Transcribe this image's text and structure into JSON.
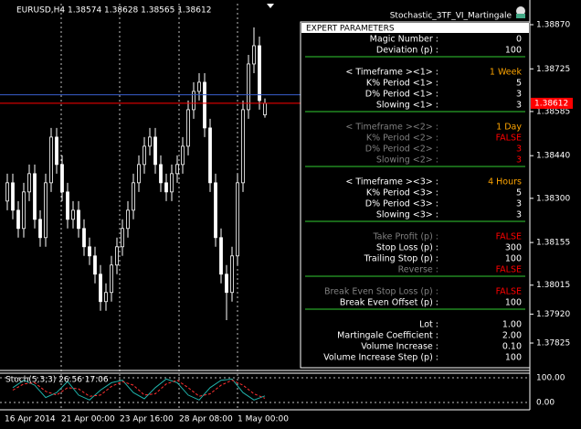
{
  "chart_data": {
    "type": "candlestick",
    "header": "EURUSD,H4 1.38574 1.38628 1.38565 1.38612",
    "expert": "Stochastic_3TF_VI_Martingale",
    "up_color": "#000000",
    "down_color": "#ffffff",
    "wick_color": "#ffffff",
    "ylim": [
      1.37735,
      1.38921
    ],
    "yticks": [
      {
        "value": 1.3887,
        "label": "1.38870"
      },
      1.38725,
      1.38585,
      {
        "value": 1.3844,
        "label": "1.38440"
      },
      {
        "value": 1.383,
        "label": "1.38300"
      },
      1.38155,
      1.38015,
      {
        "value": 1.3792,
        "label": "1.37920"
      },
      1.37825
    ],
    "bid": 1.38612,
    "bid_color": "#ff0000",
    "ask": 1.3864,
    "ask_color": "#3a5fcd",
    "x_labels": [
      "16 Apr 2014",
      "21 Apr 00:00",
      "23 Apr 16:00",
      "28 Apr 08:00",
      "1 May 00:00"
    ],
    "candles": [
      [
        1.38291,
        1.38381,
        1.38261,
        1.38351
      ],
      [
        1.38351,
        1.38381,
        1.38231,
        1.38261
      ],
      [
        1.38261,
        1.38291,
        1.38171,
        1.38201
      ],
      [
        1.38201,
        1.38351,
        1.38171,
        1.38321
      ],
      [
        1.38321,
        1.38411,
        1.38291,
        1.38381
      ],
      [
        1.38381,
        1.38411,
        1.38201,
        1.38231
      ],
      [
        1.38231,
        1.38261,
        1.38141,
        1.38171
      ],
      [
        1.38171,
        1.38381,
        1.38141,
        1.38351
      ],
      [
        1.38351,
        1.38531,
        1.38321,
        1.38501
      ],
      [
        1.38501,
        1.38531,
        1.38381,
        1.38411
      ],
      [
        1.38411,
        1.38441,
        1.38291,
        1.38321
      ],
      [
        1.38321,
        1.38351,
        1.38201,
        1.38231
      ],
      [
        1.38231,
        1.38291,
        1.38201,
        1.38261
      ],
      [
        1.38261,
        1.38291,
        1.38171,
        1.38201
      ],
      [
        1.38201,
        1.38231,
        1.38111,
        1.38141
      ],
      [
        1.38141,
        1.38171,
        1.38081,
        1.38111
      ],
      [
        1.38111,
        1.38141,
        1.38021,
        1.38051
      ],
      [
        1.38051,
        1.38081,
        1.37931,
        1.37961
      ],
      [
        1.37961,
        1.38021,
        1.37931,
        1.37991
      ],
      [
        1.37991,
        1.38111,
        1.37961,
        1.38081
      ],
      [
        1.38081,
        1.38171,
        1.38051,
        1.38141
      ],
      [
        1.38141,
        1.38231,
        1.38111,
        1.38201
      ],
      [
        1.38201,
        1.38291,
        1.38171,
        1.38261
      ],
      [
        1.38261,
        1.38381,
        1.38231,
        1.38351
      ],
      [
        1.38351,
        1.38441,
        1.38321,
        1.38411
      ],
      [
        1.38411,
        1.38501,
        1.38381,
        1.38471
      ],
      [
        1.38471,
        1.38531,
        1.38441,
        1.38501
      ],
      [
        1.38501,
        1.38531,
        1.38381,
        1.38411
      ],
      [
        1.38411,
        1.38441,
        1.38321,
        1.38351
      ],
      [
        1.38351,
        1.38381,
        1.38291,
        1.38321
      ],
      [
        1.38321,
        1.38411,
        1.38291,
        1.38381
      ],
      [
        1.38381,
        1.38441,
        1.38351,
        1.38411
      ],
      [
        1.38411,
        1.38501,
        1.38381,
        1.38471
      ],
      [
        1.38471,
        1.38621,
        1.38441,
        1.38591
      ],
      [
        1.38591,
        1.38681,
        1.38561,
        1.38651
      ],
      [
        1.38651,
        1.38711,
        1.38621,
        1.38681
      ],
      [
        1.38681,
        1.38711,
        1.38501,
        1.38531
      ],
      [
        1.38531,
        1.38561,
        1.38321,
        1.38351
      ],
      [
        1.38351,
        1.38381,
        1.38141,
        1.38171
      ],
      [
        1.38171,
        1.38201,
        1.38021,
        1.38051
      ],
      [
        1.38051,
        1.38081,
        1.379,
        1.37991
      ],
      [
        1.37991,
        1.38141,
        1.37961,
        1.38111
      ],
      [
        1.38111,
        1.38381,
        1.38081,
        1.38351
      ],
      [
        1.38351,
        1.38621,
        1.38321,
        1.38591
      ],
      [
        1.38591,
        1.38771,
        1.38561,
        1.38741
      ],
      [
        1.38741,
        1.38861,
        1.38711,
        1.38801
      ],
      [
        1.38801,
        1.38831,
        1.38591,
        1.38621
      ],
      [
        1.38574,
        1.38628,
        1.38565,
        1.38612
      ]
    ],
    "stoch": {
      "label": "Stoch(5,3,3) 26.56 17.06",
      "ylim": [
        0,
        100
      ],
      "yticks": [
        {
          "value": 100,
          "label": "100.00"
        },
        {
          "value": 0,
          "label": "0.00"
        }
      ],
      "series": [
        {
          "color": "#20b2aa",
          "values": [
            60,
            90,
            70,
            20,
            40,
            85,
            30,
            10,
            50,
            80,
            90,
            40,
            15,
            60,
            95,
            80,
            30,
            10,
            60,
            90,
            95,
            40,
            10,
            26.56
          ]
        },
        {
          "color": "#ff3030",
          "values": [
            50,
            75,
            80,
            45,
            30,
            60,
            55,
            25,
            30,
            65,
            85,
            70,
            30,
            35,
            75,
            90,
            60,
            25,
            35,
            70,
            90,
            70,
            35,
            17.06
          ]
        }
      ]
    }
  },
  "panel": {
    "title": "EXPERT PARAMETERS",
    "separator_color": "#32cd32",
    "sections": [
      [
        {
          "label": "Magic Number :",
          "value": "0",
          "label_color": "#ffffff",
          "value_color": "#ffffff"
        },
        {
          "label": "Deviation (p) :",
          "value": "100",
          "label_color": "#ffffff",
          "value_color": "#ffffff"
        }
      ],
      [
        {
          "label": "< Timeframe ><1> :",
          "value": "1 Week",
          "label_color": "#ffffff",
          "value_color": "#ffa500"
        },
        {
          "label": "K% Period <1> :",
          "value": "5",
          "label_color": "#ffffff",
          "value_color": "#ffffff"
        },
        {
          "label": "D% Period <1> :",
          "value": "3",
          "label_color": "#ffffff",
          "value_color": "#ffffff"
        },
        {
          "label": "Slowing <1> :",
          "value": "3",
          "label_color": "#ffffff",
          "value_color": "#ffffff"
        }
      ],
      [
        {
          "label": "< Timeframe ><2> :",
          "value": "1 Day",
          "label_color": "#808080",
          "value_color": "#ffa500"
        },
        {
          "label": "K% Period <2> :",
          "value": "FALSE",
          "label_color": "#808080",
          "value_color": "#ff0000"
        },
        {
          "label": "D% Period <2> :",
          "value": "3",
          "label_color": "#808080",
          "value_color": "#ff0000"
        },
        {
          "label": "Slowing <2> :",
          "value": "3",
          "label_color": "#808080",
          "value_color": "#ff0000"
        }
      ],
      [
        {
          "label": "< Timeframe ><3> :",
          "value": "4 Hours",
          "label_color": "#ffffff",
          "value_color": "#ffa500"
        },
        {
          "label": "K% Period <3> :",
          "value": "5",
          "label_color": "#ffffff",
          "value_color": "#ffffff"
        },
        {
          "label": "D% Period <3> :",
          "value": "3",
          "label_color": "#ffffff",
          "value_color": "#ffffff"
        },
        {
          "label": "Slowing <3> :",
          "value": "3",
          "label_color": "#ffffff",
          "value_color": "#ffffff"
        }
      ],
      [
        {
          "label": "Take Profit (p) :",
          "value": "FALSE",
          "label_color": "#808080",
          "value_color": "#ff0000"
        },
        {
          "label": "Stop Loss (p) :",
          "value": "300",
          "label_color": "#ffffff",
          "value_color": "#ffffff"
        },
        {
          "label": "Trailing Stop (p) :",
          "value": "100",
          "label_color": "#ffffff",
          "value_color": "#ffffff"
        },
        {
          "label": "Reverse :",
          "value": "FALSE",
          "label_color": "#808080",
          "value_color": "#ff0000"
        }
      ],
      [
        {
          "label": "Break Even Stop Loss (p) :",
          "value": "FALSE",
          "label_color": "#808080",
          "value_color": "#ff0000"
        },
        {
          "label": "Break Even Offset (p) :",
          "value": "100",
          "label_color": "#ffffff",
          "value_color": "#ffffff"
        }
      ],
      [
        {
          "label": "Lot :",
          "value": "1.00",
          "label_color": "#ffffff",
          "value_color": "#ffffff"
        },
        {
          "label": "Martingale Coefficient :",
          "value": "2.00",
          "label_color": "#ffffff",
          "value_color": "#ffffff"
        },
        {
          "label": "Volume Increase :",
          "value": "0.10",
          "label_color": "#ffffff",
          "value_color": "#ffffff"
        },
        {
          "label": "Volume Increase Step (p) :",
          "value": "100",
          "label_color": "#ffffff",
          "value_color": "#ffffff"
        }
      ]
    ]
  }
}
